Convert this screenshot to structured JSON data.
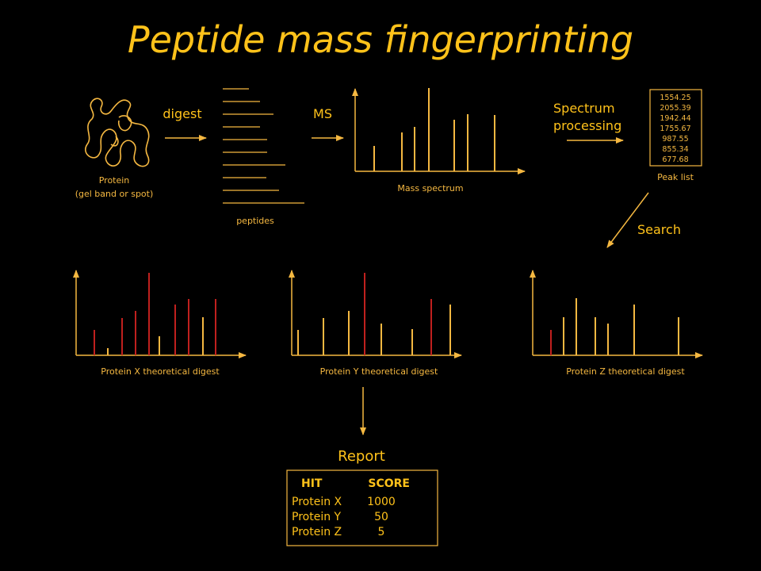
{
  "title": "Peptide mass fingerprinting",
  "colors": {
    "orange": "#f5b841",
    "red": "#c0201e",
    "background": "#000000"
  },
  "protein_label": [
    "Protein",
    "(gel band or spot)"
  ],
  "digest_label": "digest",
  "peptides_label": "peptides",
  "ms_label": "MS",
  "mass_spectrum_label": "Mass spectrum",
  "processing_label": [
    "Spectrum",
    "processing"
  ],
  "peak_list": {
    "values": [
      "1554.25",
      "2055.39",
      "1942.44",
      "1755.67",
      "987.55",
      "855.34",
      "677.68"
    ],
    "label": "Peak list"
  },
  "search_label": "Search",
  "digests": [
    {
      "label": "Protein X theoretical digest"
    },
    {
      "label": "Protein Y theoretical digest"
    },
    {
      "label": "Protein Z theoretical digest"
    }
  ],
  "report": {
    "title": "Report",
    "headers": [
      "HIT",
      "SCORE"
    ],
    "rows": [
      {
        "hit": "Protein X",
        "score": "1000"
      },
      {
        "hit": "Protein Y",
        "score": "50"
      },
      {
        "hit": "Protein Z",
        "score": "5"
      }
    ]
  }
}
